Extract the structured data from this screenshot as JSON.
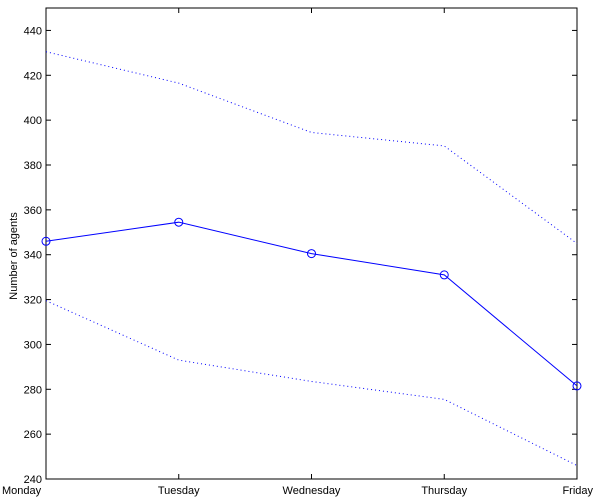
{
  "chart_data": {
    "type": "line",
    "title": "",
    "xlabel": "",
    "ylabel": "Number of agents",
    "categories": [
      "Monday",
      "Tuesday",
      "Wednesday",
      "Thursday",
      "Friday"
    ],
    "ylim": [
      240,
      450
    ],
    "yticks": [
      240,
      260,
      280,
      300,
      320,
      340,
      360,
      380,
      400,
      420,
      440
    ],
    "grid": false,
    "legend": "none",
    "series": [
      {
        "role": "main",
        "values": [
          346,
          354.5,
          340.5,
          331,
          281.5
        ],
        "color": "#0000ff",
        "style": "solid",
        "marker": "circle"
      },
      {
        "role": "upper-bound",
        "values": [
          430.5,
          416.5,
          394.5,
          388.5,
          345
        ],
        "color": "#0000ff",
        "style": "dotted",
        "marker": "none"
      },
      {
        "role": "lower-bound",
        "values": [
          319.5,
          293,
          283.5,
          275.5,
          246
        ],
        "color": "#0000ff",
        "style": "dotted",
        "marker": "none"
      }
    ]
  }
}
